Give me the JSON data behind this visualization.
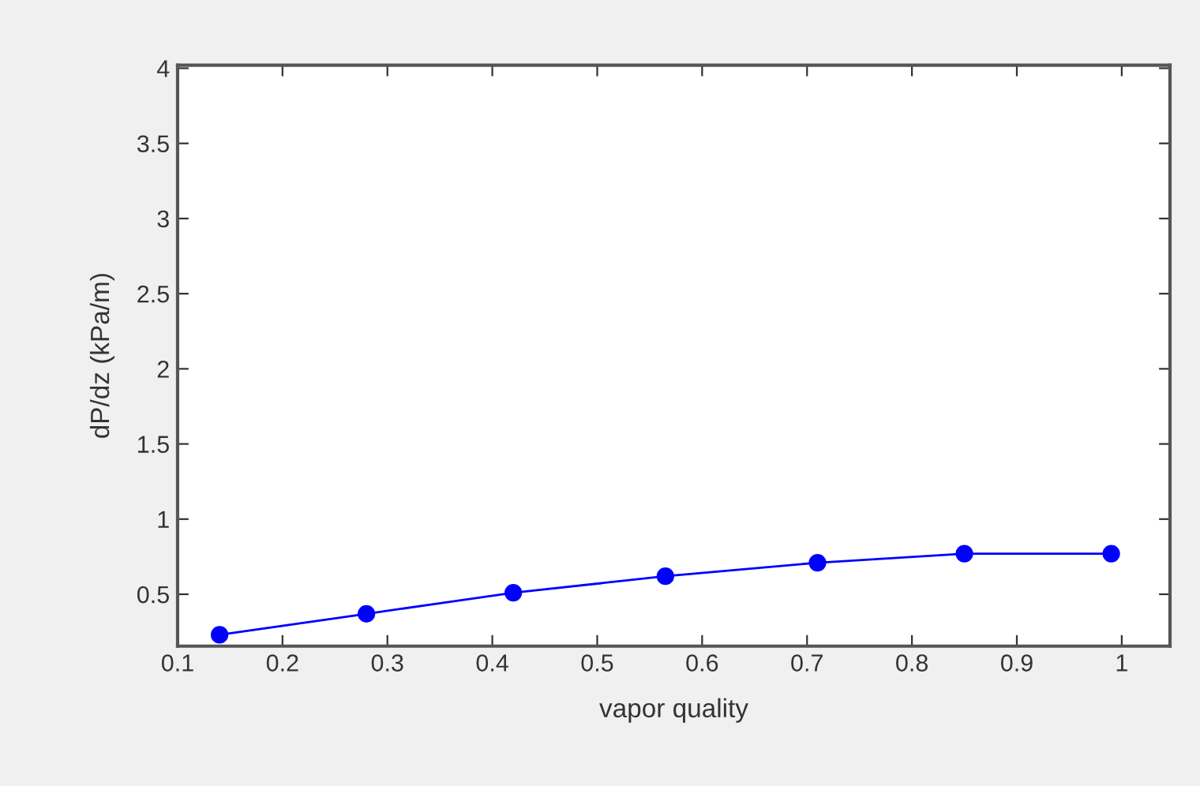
{
  "chart_data": {
    "type": "line",
    "xlabel": "vapor quality",
    "ylabel": "dP/dz (kPa/m)",
    "x": [
      0.14,
      0.28,
      0.42,
      0.565,
      0.71,
      0.85,
      0.99
    ],
    "series": [
      {
        "color": "#0000ff",
        "values": [
          0.23,
          0.37,
          0.51,
          0.62,
          0.71,
          0.77,
          0.77
        ]
      }
    ],
    "marker": "circle",
    "line_style": "solid",
    "grid": false,
    "legend": false,
    "xlim": [
      0.1,
      1.046
    ],
    "ylim": [
      0.155,
      4.02
    ],
    "xticks": [
      0.1,
      0.2,
      0.3,
      0.4,
      0.5,
      0.6,
      0.7,
      0.8,
      0.9,
      1
    ],
    "yticks": [
      0.5,
      1,
      1.5,
      2,
      2.5,
      3,
      3.5,
      4
    ]
  }
}
